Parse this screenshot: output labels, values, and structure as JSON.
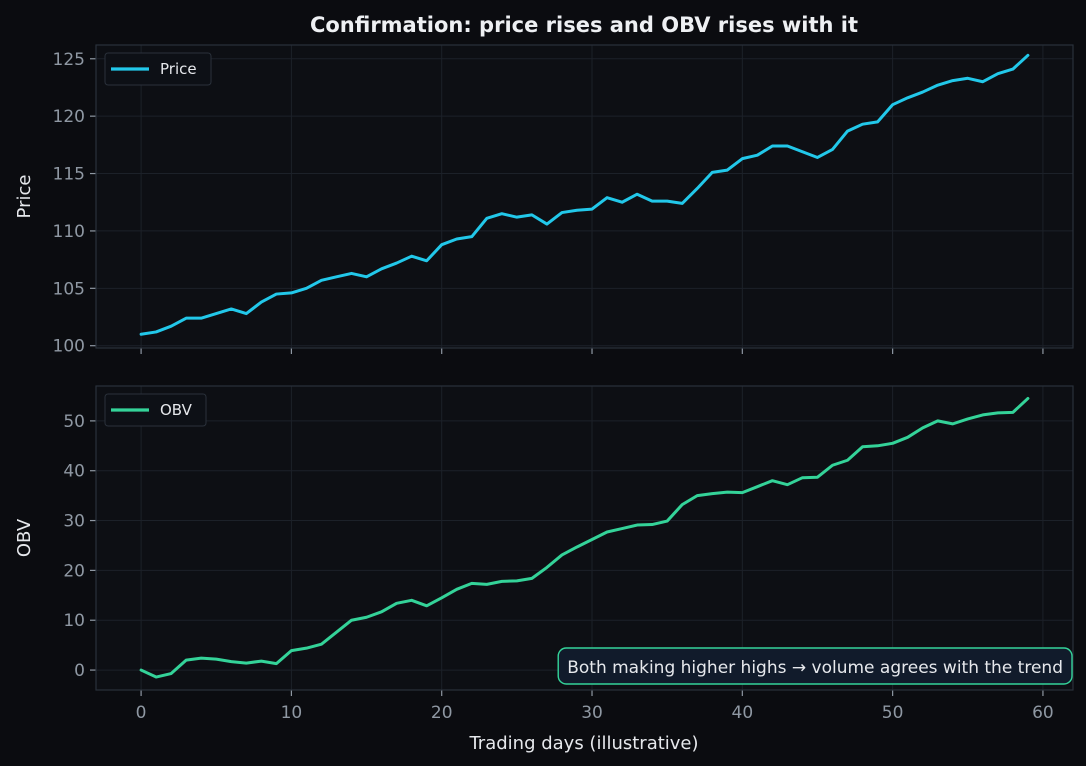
{
  "chart_data": {
    "type": "line",
    "title": "Confirmation: price rises and OBV rises with it",
    "xlabel": "Trading days (illustrative)",
    "xlim": [
      -3,
      62
    ],
    "xticks": [
      0,
      10,
      20,
      30,
      40,
      50,
      60
    ],
    "grid": true,
    "colors": {
      "background": "#0b0c10",
      "axes_face": "#0d0f14",
      "grid": "#1c2129",
      "spine": "#2a313b",
      "price": "#22c8ea",
      "obv": "#34d399",
      "annotation_fill": "#111b2b",
      "annotation_edge": "#34d399"
    },
    "panels": [
      {
        "ylabel": "Price",
        "ylim": [
          99.8,
          126.2
        ],
        "yticks": [
          100,
          105,
          110,
          115,
          120,
          125
        ],
        "legend": "top-left",
        "series": [
          {
            "name": "Price",
            "color": "#22c8ea",
            "x": [
              0,
              1,
              2,
              3,
              4,
              5,
              6,
              7,
              8,
              9,
              10,
              11,
              12,
              13,
              14,
              15,
              16,
              17,
              18,
              19,
              20,
              21,
              22,
              23,
              24,
              25,
              26,
              27,
              28,
              29,
              30,
              31,
              32,
              33,
              34,
              35,
              36,
              37,
              38,
              39,
              40,
              41,
              42,
              43,
              44,
              45,
              46,
              47,
              48,
              49,
              50,
              51,
              52,
              53,
              54,
              55,
              56,
              57,
              58,
              59
            ],
            "values": [
              101.0,
              101.2,
              101.7,
              102.4,
              102.4,
              102.8,
              103.2,
              102.8,
              103.8,
              104.5,
              104.6,
              105.0,
              105.7,
              106.0,
              106.3,
              106.0,
              106.7,
              107.2,
              107.8,
              107.4,
              108.8,
              109.3,
              109.5,
              111.1,
              111.5,
              111.2,
              111.4,
              110.6,
              111.6,
              111.8,
              111.9,
              112.9,
              112.5,
              113.2,
              112.6,
              112.6,
              112.4,
              113.7,
              115.1,
              115.3,
              116.3,
              116.6,
              117.4,
              117.4,
              116.9,
              116.4,
              117.1,
              118.7,
              119.3,
              119.5,
              121.0,
              121.6,
              122.1,
              122.7,
              123.1,
              123.3,
              123.0,
              123.7,
              124.1,
              125.3
            ]
          }
        ]
      },
      {
        "ylabel": "OBV",
        "ylim": [
          -4,
          57
        ],
        "yticks": [
          0,
          10,
          20,
          30,
          40,
          50
        ],
        "legend": "top-left",
        "series": [
          {
            "name": "OBV",
            "color": "#34d399",
            "x": [
              0,
              1,
              2,
              3,
              4,
              5,
              6,
              7,
              8,
              9,
              10,
              11,
              12,
              13,
              14,
              15,
              16,
              17,
              18,
              19,
              20,
              21,
              22,
              23,
              24,
              25,
              26,
              27,
              28,
              29,
              30,
              31,
              32,
              33,
              34,
              35,
              36,
              37,
              38,
              39,
              40,
              41,
              42,
              43,
              44,
              45,
              46,
              47,
              48,
              49,
              50,
              51,
              52,
              53,
              54,
              55,
              56,
              57,
              58,
              59
            ],
            "values": [
              0.0,
              -1.4,
              -0.7,
              2.0,
              2.4,
              2.2,
              1.7,
              1.4,
              1.8,
              1.3,
              3.9,
              4.4,
              5.2,
              7.6,
              10.0,
              10.6,
              11.7,
              13.4,
              14.0,
              12.9,
              14.5,
              16.2,
              17.4,
              17.2,
              17.8,
              17.9,
              18.4,
              20.6,
              23.1,
              24.7,
              26.2,
              27.7,
              28.4,
              29.1,
              29.2,
              29.9,
              33.2,
              35.0,
              35.4,
              35.7,
              35.6,
              36.8,
              38.0,
              37.2,
              38.6,
              38.7,
              41.1,
              42.1,
              44.8,
              45.0,
              45.5,
              46.7,
              48.6,
              50.0,
              49.4,
              50.4,
              51.2,
              51.6,
              51.7,
              54.5
            ]
          }
        ],
        "annotation": "Both making higher highs → volume agrees with the trend"
      }
    ]
  }
}
